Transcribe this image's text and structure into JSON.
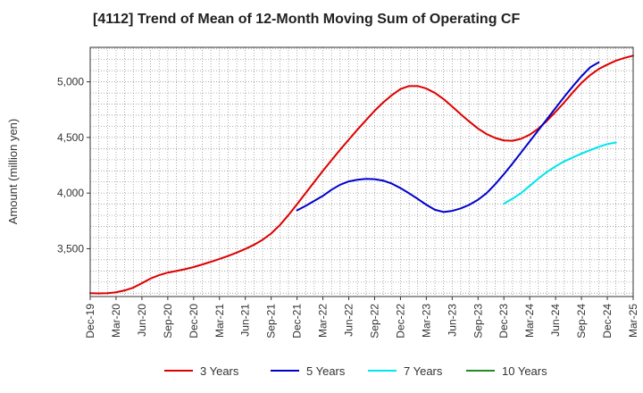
{
  "chart_data": {
    "type": "line",
    "title": "[4112]  Trend of Mean of 12-Month Moving Sum of Operating CF",
    "ylabel": "Amount (million yen)",
    "xlabel": "",
    "ylim": [
      3070,
      5310
    ],
    "yticks": [
      3500,
      4000,
      4500,
      5000
    ],
    "ytick_labels": [
      "3,500",
      "4,000",
      "4,500",
      "5,000"
    ],
    "x_range": [
      "2019-12",
      "2025-03"
    ],
    "xtick_labels": [
      "Dec-19",
      "Mar-20",
      "Jun-20",
      "Sep-20",
      "Dec-20",
      "Mar-21",
      "Jun-21",
      "Sep-21",
      "Dec-21",
      "Mar-22",
      "Jun-22",
      "Sep-22",
      "Dec-22",
      "Mar-23",
      "Jun-23",
      "Sep-23",
      "Dec-23",
      "Mar-24",
      "Jun-24",
      "Sep-24",
      "Dec-24",
      "Mar-25"
    ],
    "grid": true,
    "legend_position": "bottom",
    "series": [
      {
        "name": "3 Years",
        "color": "#dd0000",
        "start": "2019-12",
        "values": [
          3100,
          3098,
          3100,
          3108,
          3125,
          3150,
          3190,
          3232,
          3262,
          3285,
          3300,
          3316,
          3335,
          3358,
          3382,
          3408,
          3435,
          3465,
          3498,
          3535,
          3580,
          3637,
          3712,
          3802,
          3900,
          4000,
          4100,
          4200,
          4295,
          4390,
          4480,
          4570,
          4655,
          4740,
          4815,
          4880,
          4935,
          4962,
          4962,
          4940,
          4900,
          4845,
          4778,
          4708,
          4642,
          4580,
          4530,
          4495,
          4473,
          4470,
          4488,
          4525,
          4580,
          4650,
          4730,
          4815,
          4905,
          4990,
          5060,
          5115,
          5155,
          5190,
          5215,
          5235
        ]
      },
      {
        "name": "5 Years",
        "color": "#0000cc",
        "start": "2021-12",
        "values": [
          3845,
          3885,
          3930,
          3975,
          4030,
          4075,
          4105,
          4120,
          4128,
          4125,
          4112,
          4085,
          4045,
          3998,
          3948,
          3895,
          3850,
          3830,
          3840,
          3862,
          3895,
          3940,
          4000,
          4080,
          4170,
          4265,
          4365,
          4465,
          4565,
          4665,
          4765,
          4865,
          4960,
          5050,
          5130,
          5175
        ]
      },
      {
        "name": "7 Years",
        "color": "#00e5ee",
        "start": "2023-12",
        "values": [
          3905,
          3950,
          4000,
          4065,
          4130,
          4190,
          4240,
          4285,
          4320,
          4355,
          4385,
          4415,
          4440,
          4455
        ]
      },
      {
        "name": "10 Years",
        "color": "#228b22",
        "start": "2024-12",
        "values": []
      }
    ]
  }
}
